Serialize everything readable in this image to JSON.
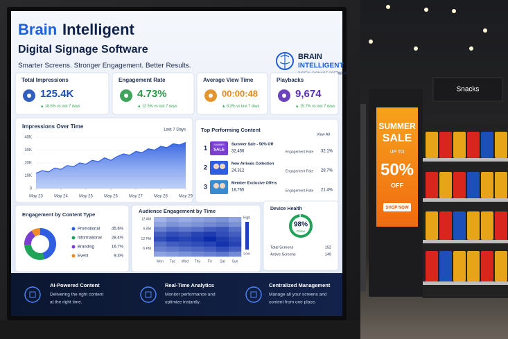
{
  "header": {
    "title_a": "Brain",
    "title_b": "Intelligent",
    "subtitle": "Digital Signage Software",
    "tagline": "Smarter Screens. Stronger Engagement. Better Results."
  },
  "logo": {
    "line1": "BRAIN",
    "line2": "INTELLIGENT",
    "line3": "DIGITAL SIGNAGE SOFTWARE"
  },
  "kpis": [
    {
      "label": "Total Impressions",
      "value": "125.4K",
      "change": "▲ 18.6% vs last 7 days",
      "color": "#1d4fb8"
    },
    {
      "label": "Engagement Rate",
      "value": "4.73%",
      "change": "▲ 12.5% vs last 7 days",
      "color": "#2a9a4a"
    },
    {
      "label": "Average View Time",
      "value": "00:00:48",
      "change": "▲ 8.3% vs last 7 days",
      "color": "#e08a1a"
    },
    {
      "label": "Playbacks",
      "value": "9,674",
      "change": "▲ 15.7% vs last 7 days",
      "color": "#5b2fb5"
    }
  ],
  "impressions_chart": {
    "type": "area",
    "title": "Impressions Over Time",
    "range": "Last 7 Days",
    "color": "#2f5fe0",
    "x": [
      0,
      0.25,
      0.5,
      0.75,
      1,
      1.25,
      1.5,
      1.75,
      2,
      2.25,
      2.5,
      2.75,
      3,
      3.25,
      3.5,
      3.75,
      4,
      4.25,
      4.5,
      4.75,
      5,
      5.25,
      5.5,
      5.75,
      6
    ],
    "values": [
      12000,
      14000,
      13000,
      16000,
      15000,
      18000,
      17000,
      20000,
      19000,
      22000,
      21000,
      24000,
      22000,
      25000,
      27000,
      26000,
      29000,
      28000,
      31000,
      30000,
      33000,
      32000,
      35000,
      34000,
      36000
    ],
    "xlim": [
      0,
      6
    ],
    "xticks": [
      {
        "value": 0,
        "label": "May 23"
      },
      {
        "value": 1,
        "label": "May 24"
      },
      {
        "value": 2,
        "label": "May 25"
      },
      {
        "value": 3,
        "label": "May 26"
      },
      {
        "value": 4,
        "label": "May 27"
      },
      {
        "value": 5,
        "label": "May 28"
      },
      {
        "value": 6,
        "label": "May 29"
      }
    ],
    "ylim": [
      0,
      40000
    ],
    "yticks": [
      0,
      {
        "value": 10000,
        "label": "10K"
      },
      {
        "value": 20000,
        "label": "20K"
      },
      {
        "value": 30000,
        "label": "30K"
      },
      {
        "value": 40000,
        "label": "40K"
      }
    ]
  },
  "top_content": {
    "title": "Top Performing Content",
    "link": "View All",
    "thumb_text": [
      "SUMMER",
      "SALE"
    ],
    "items": [
      {
        "rank": "1",
        "name": "Summer Sale - 50% Off",
        "count": "32,456",
        "metric": "Engagement Rate",
        "rate": "32.1%"
      },
      {
        "rank": "2",
        "name": "New Arrivals Collection",
        "count": "24,312",
        "metric": "Engagement Rate",
        "rate": "28.7%"
      },
      {
        "rank": "3",
        "name": "Member Exclusive Offers",
        "count": "18,765",
        "metric": "Engagement Rate",
        "rate": "21.4%"
      }
    ]
  },
  "content_type": {
    "type": "pie",
    "title": "Engagement by Content Type",
    "categories": [
      "Promotional",
      "Informational",
      "Branding",
      "Event"
    ],
    "values": [
      45.6,
      28.4,
      16.7,
      9.3
    ],
    "value_labels": [
      "45.6%",
      "28.4%",
      "16.7%",
      "9.3%"
    ],
    "colors": [
      "#2f5fe0",
      "#22a35a",
      "#7a3fd0",
      "#f08a24"
    ]
  },
  "heatmap": {
    "title": "Audience Engagement by Time",
    "hours": [
      "12 AM",
      "6 AM",
      "12 PM",
      "6 PM"
    ],
    "days": [
      "Mon",
      "Tue",
      "Wed",
      "Thu",
      "Fri",
      "Sat",
      "Sun"
    ],
    "high": "High",
    "low": "Low",
    "values": [
      [
        0.2,
        0.3,
        0.25,
        0.3,
        0.35,
        0.4,
        0.3
      ],
      [
        0.3,
        0.4,
        0.35,
        0.4,
        0.45,
        0.5,
        0.4
      ],
      [
        0.5,
        0.6,
        0.55,
        0.6,
        0.7,
        0.75,
        0.6
      ],
      [
        0.7,
        0.8,
        0.75,
        0.85,
        0.9,
        0.8,
        0.7
      ],
      [
        0.8,
        0.9,
        0.85,
        0.9,
        1,
        0.9,
        0.8
      ],
      [
        0.6,
        0.7,
        0.75,
        0.8,
        0.85,
        0.95,
        0.85
      ],
      [
        0.5,
        0.55,
        0.6,
        0.65,
        0.7,
        0.8,
        0.7
      ],
      [
        0.3,
        0.35,
        0.4,
        0.45,
        0.5,
        0.55,
        0.45
      ]
    ]
  },
  "device_health": {
    "title": "Device Health",
    "value": 98,
    "label": "98%",
    "status": "Online",
    "rows": [
      [
        "Total Screens",
        "152"
      ],
      [
        "Active Screens",
        "149"
      ]
    ]
  },
  "features": [
    {
      "title": "AI-Powered Content",
      "text": [
        "Delivering the right content",
        "at the right time."
      ]
    },
    {
      "title": "Real-Time Analytics",
      "text": [
        "Monitor performance and",
        "optimize instantly."
      ]
    },
    {
      "title": "Centralized Management",
      "text": [
        "Manage all your screens and",
        "content from one place."
      ]
    }
  ],
  "store": {
    "sign": "Snacks",
    "poster": {
      "line1": "SUMMER",
      "line2": "SALE",
      "line3": "UP TO",
      "line4": "50%",
      "line5": "OFF",
      "button": "SHOP NOW"
    }
  }
}
